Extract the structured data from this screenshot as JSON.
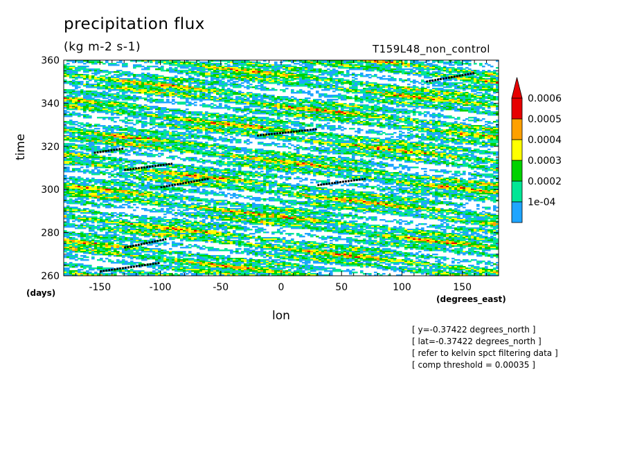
{
  "title": "precipitation flux",
  "units": "(kg m-2 s-1)",
  "run_label": "T159L48_non_control",
  "notes": [
    "[ y=-0.37422 degrees_north ]",
    "[ lat=-0.37422 degrees_north ]",
    "[ refer to kelvin spct filtering data ]",
    "[ comp threshold = 0.00035 ]"
  ],
  "chart_data": {
    "type": "heatmap",
    "title": "precipitation flux",
    "units": "(kg m-2 s-1)",
    "xlabel": "lon",
    "x_unit": "(degrees_east)",
    "ylabel": "time",
    "y_unit": "(days)",
    "xlim": [
      -180,
      180
    ],
    "ylim": [
      260,
      360
    ],
    "x_ticks": [
      -150,
      -100,
      -50,
      0,
      50,
      100,
      150
    ],
    "x_tick_labels": [
      "-150",
      "-100",
      "-50",
      "0",
      "50",
      "100",
      "150"
    ],
    "y_ticks": [
      260,
      280,
      300,
      320,
      340,
      360
    ],
    "y_tick_labels": [
      "260",
      "280",
      "300",
      "320",
      "340",
      "360"
    ],
    "colorbar": {
      "levels": [
        0.0001,
        0.0002,
        0.0003,
        0.0004,
        0.0005,
        0.0006
      ],
      "labels": [
        "1e-04",
        "0.0002",
        "0.0003",
        "0.0004",
        "0.0005",
        "0.0006"
      ],
      "colors": [
        "#1ea5ff",
        "#00e696",
        "#00d200",
        "#ffff00",
        "#ffa000",
        "#e60000"
      ],
      "extend": "max"
    },
    "kelvin_tracks": [
      {
        "lon": [
          -150,
          -100
        ],
        "time": [
          262,
          266
        ]
      },
      {
        "lon": [
          -130,
          -95
        ],
        "time": [
          273,
          277
        ]
      },
      {
        "lon": [
          -100,
          -60
        ],
        "time": [
          301,
          305
        ]
      },
      {
        "lon": [
          -130,
          -90
        ],
        "time": [
          309,
          312
        ]
      },
      {
        "lon": [
          -155,
          -130
        ],
        "time": [
          317,
          319
        ]
      },
      {
        "lon": [
          -20,
          30
        ],
        "time": [
          325,
          328
        ]
      },
      {
        "lon": [
          30,
          70
        ],
        "time": [
          302,
          305
        ]
      },
      {
        "lon": [
          120,
          160
        ],
        "time": [
          350,
          354
        ]
      }
    ]
  }
}
